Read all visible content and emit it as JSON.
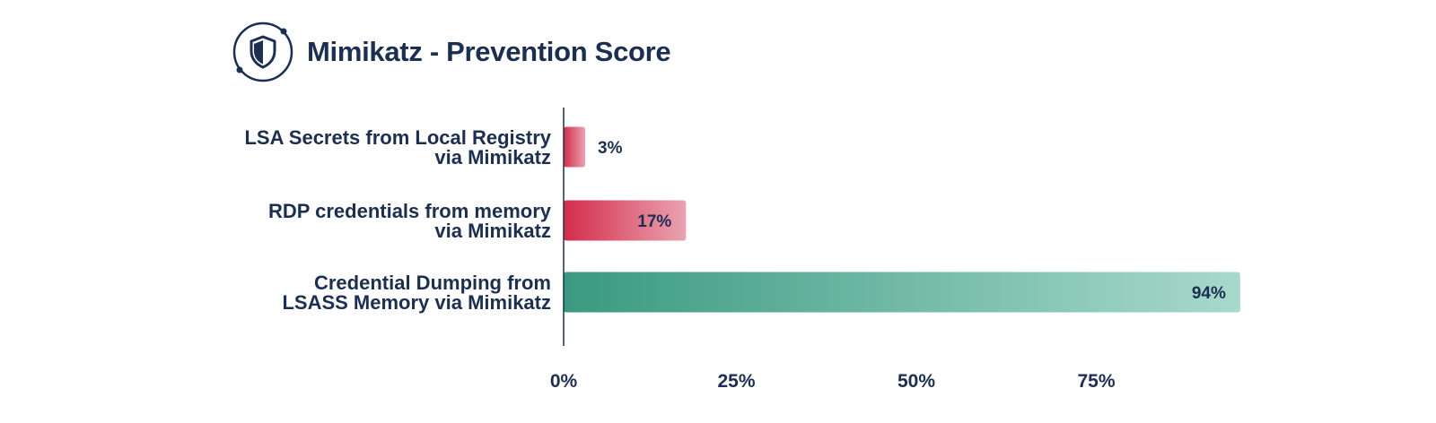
{
  "header": {
    "title": "Mimikatz - Prevention Score",
    "icon": "shield-icon"
  },
  "chart_data": {
    "type": "bar",
    "orientation": "horizontal",
    "title": "Mimikatz - Prevention Score",
    "categories": [
      [
        "LSA Secrets from Local Registry",
        "via Mimikatz"
      ],
      [
        "RDP credentials from memory",
        "via Mimikatz"
      ],
      [
        "Credential Dumping from",
        "LSASS Memory via Mimikatz"
      ]
    ],
    "values": [
      3,
      17,
      94
    ],
    "value_labels": [
      "3%",
      "17%",
      "94%"
    ],
    "bar_colors": [
      "#d42c4a",
      "#d42c4a",
      "#3a9a80"
    ],
    "xlim": [
      0,
      100
    ],
    "x_ticks": [
      0,
      25,
      50,
      75
    ],
    "x_tick_labels": [
      "0%",
      "25%",
      "50%",
      "75%"
    ],
    "grid": false,
    "legend": "none"
  }
}
